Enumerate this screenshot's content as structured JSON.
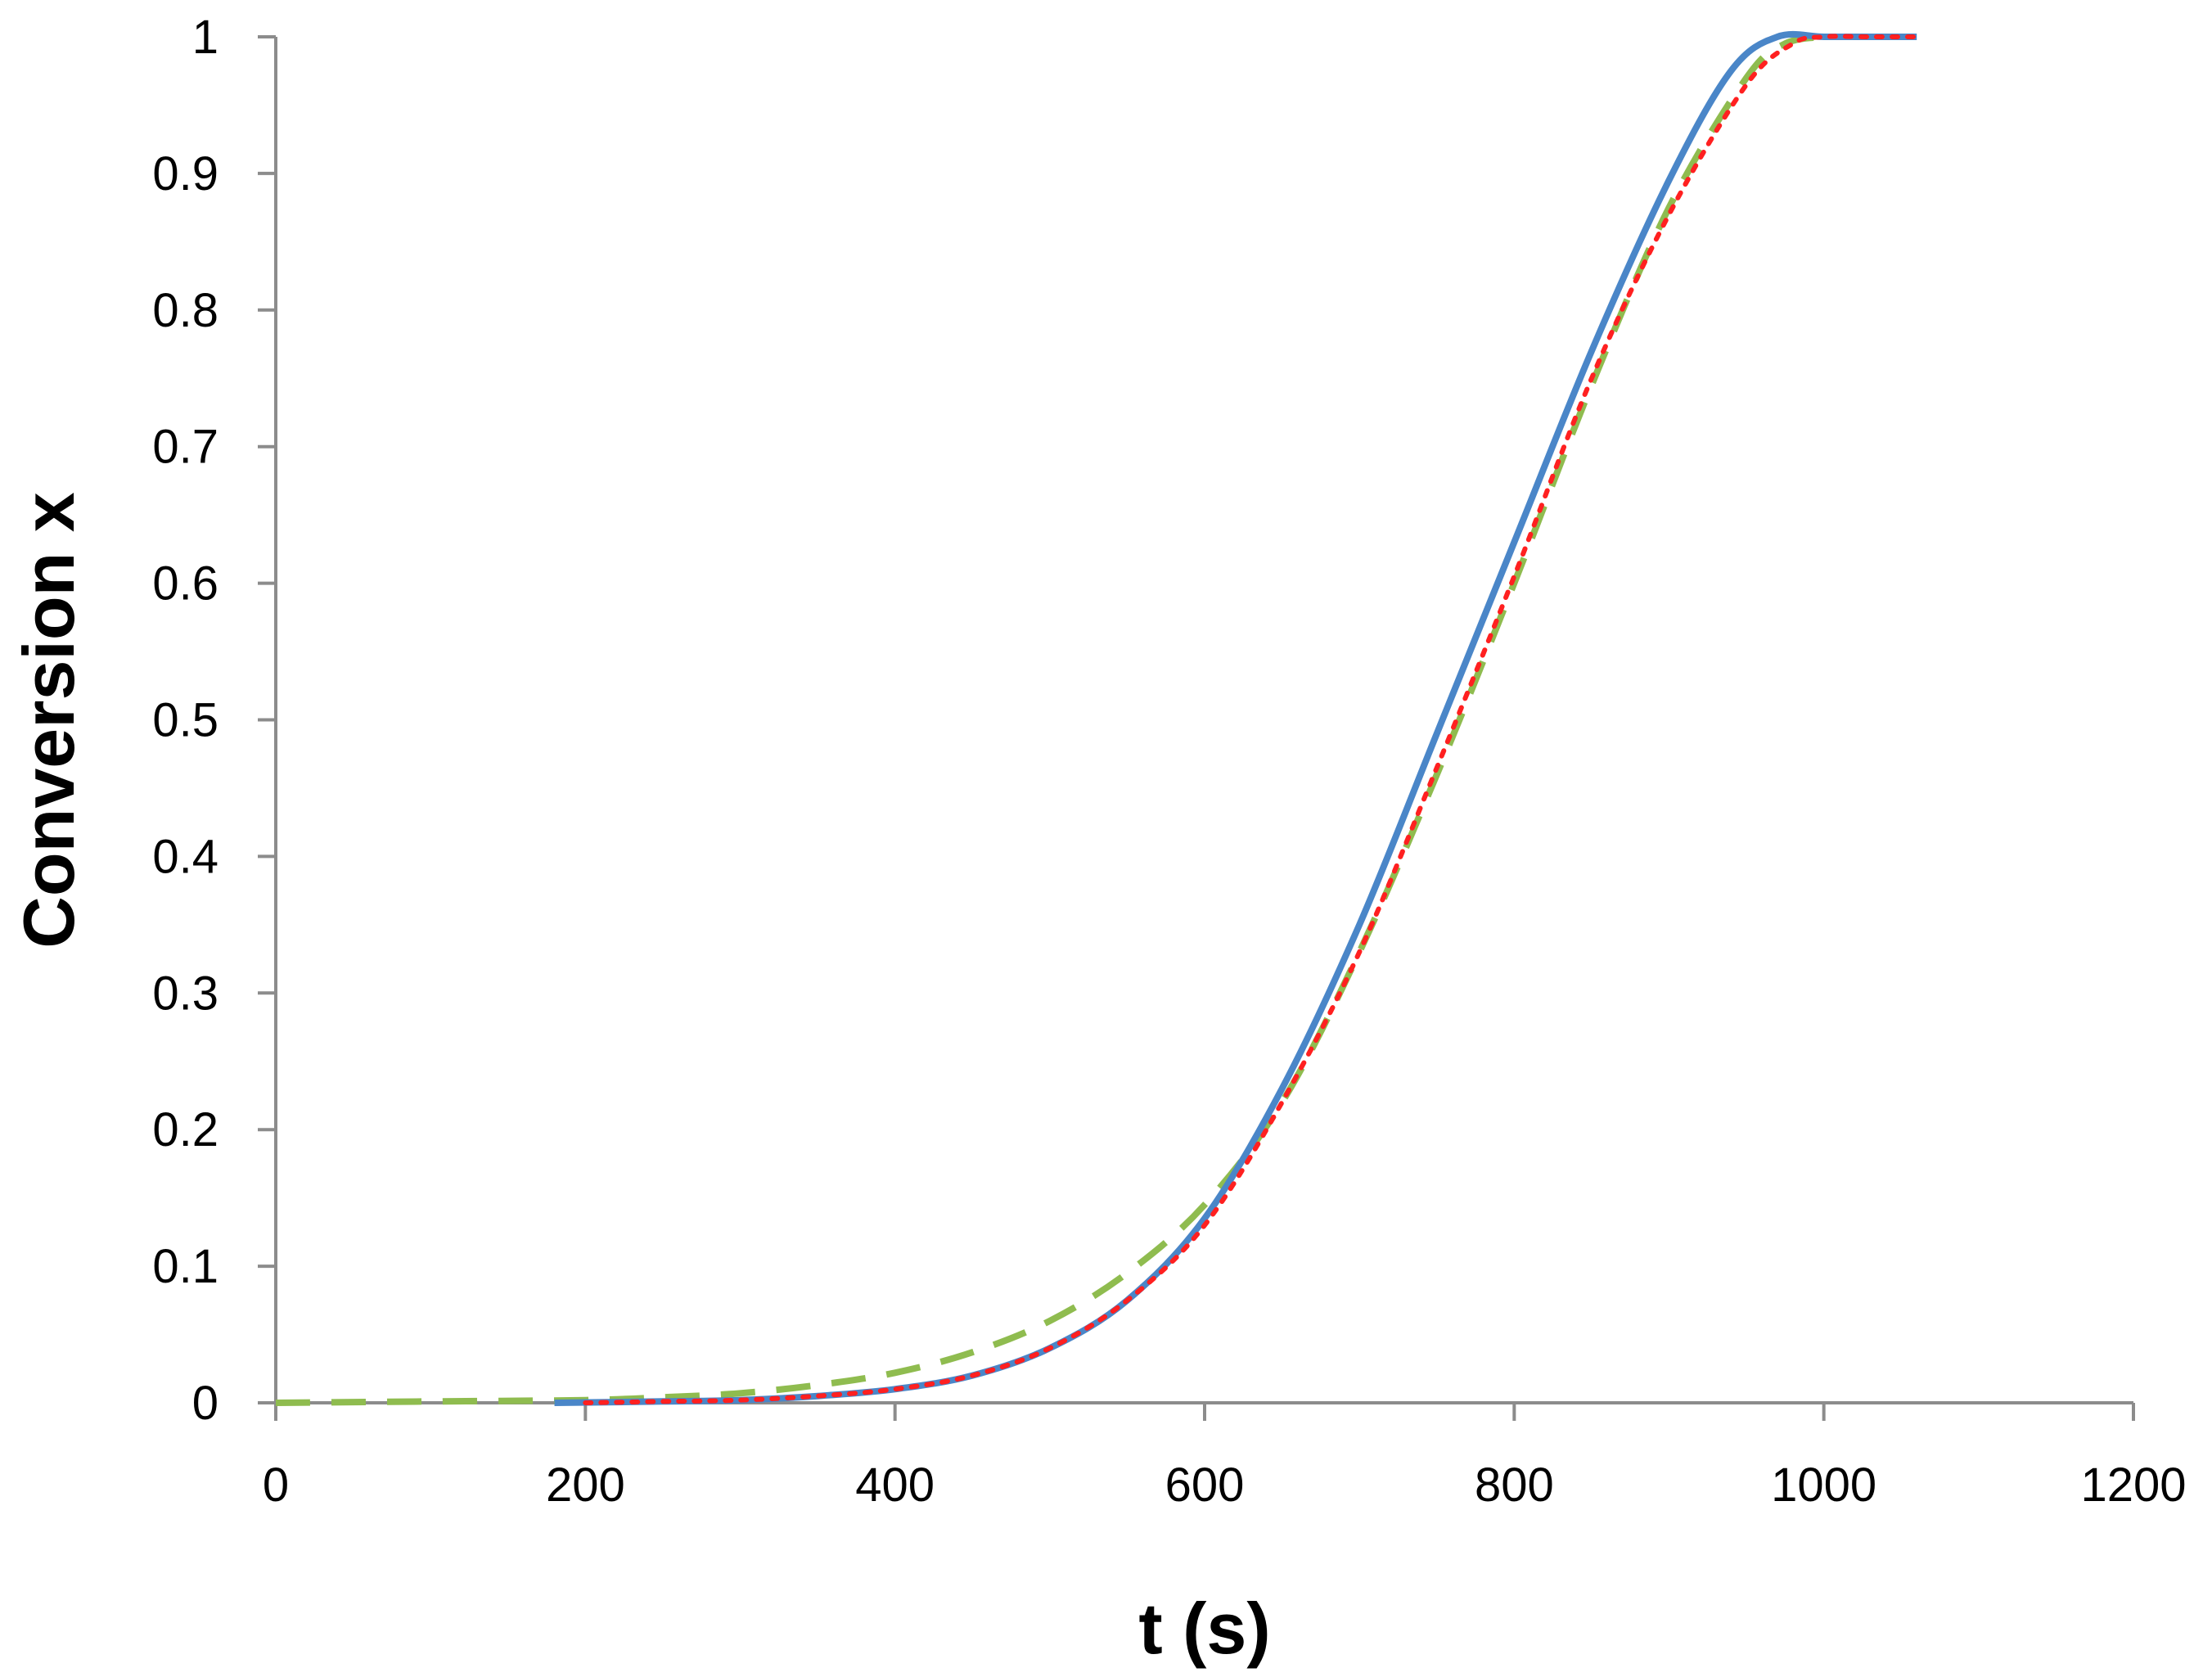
{
  "chart_data": {
    "type": "line",
    "title": "",
    "xlabel": "t (s)",
    "ylabel": "Conversion x",
    "xlim": [
      0,
      1200
    ],
    "ylim": [
      0,
      1
    ],
    "xticks": [
      0,
      200,
      400,
      600,
      800,
      1000,
      1200
    ],
    "yticks": [
      0,
      0.1,
      0.2,
      0.3,
      0.4,
      0.5,
      0.6,
      0.7,
      0.8,
      0.9,
      1
    ],
    "grid": false,
    "legend": "none",
    "series": [
      {
        "color": "#4a86c8",
        "style": "solid",
        "x": [
          180,
          250,
          300,
          350,
          400,
          450,
          500,
          550,
          600,
          650,
          700,
          750,
          800,
          850,
          900,
          940,
          970,
          1000,
          1030,
          1060
        ],
        "y": [
          0,
          0.001,
          0.002,
          0.005,
          0.01,
          0.02,
          0.04,
          0.075,
          0.135,
          0.23,
          0.35,
          0.49,
          0.63,
          0.77,
          0.895,
          0.975,
          1.0,
          1.0,
          1.0,
          1.0
        ]
      },
      {
        "color": "#ff2020",
        "style": "dotted",
        "x": [
          200,
          250,
          300,
          350,
          400,
          450,
          500,
          550,
          600,
          650,
          700,
          750,
          800,
          850,
          900,
          950,
          980,
          1000,
          1030,
          1060
        ],
        "y": [
          0,
          0.001,
          0.002,
          0.005,
          0.01,
          0.02,
          0.04,
          0.075,
          0.13,
          0.22,
          0.33,
          0.465,
          0.605,
          0.75,
          0.87,
          0.965,
          0.995,
          1.0,
          1.0,
          1.0
        ]
      },
      {
        "color": "#8fbc4f",
        "style": "dashed",
        "x": [
          0,
          100,
          200,
          250,
          300,
          350,
          400,
          450,
          500,
          550,
          600,
          650,
          700,
          750,
          800,
          850,
          900,
          950,
          975,
          1000
        ],
        "y": [
          0,
          0.001,
          0.002,
          0.004,
          0.007,
          0.013,
          0.022,
          0.037,
          0.06,
          0.095,
          0.145,
          0.22,
          0.33,
          0.46,
          0.6,
          0.745,
          0.875,
          0.97,
          0.995,
          1.0
        ]
      }
    ]
  }
}
